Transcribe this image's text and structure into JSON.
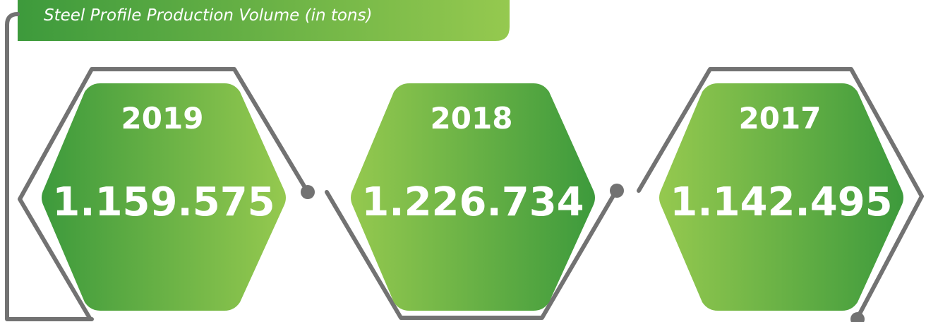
{
  "subtitle": "Steel Profile Production Volume (in tons)",
  "items": [
    {
      "year": "2019",
      "value": "1.159.575"
    },
    {
      "year": "2018",
      "value": "1.226.734"
    },
    {
      "year": "2017",
      "value": "1.142.495"
    }
  ]
}
